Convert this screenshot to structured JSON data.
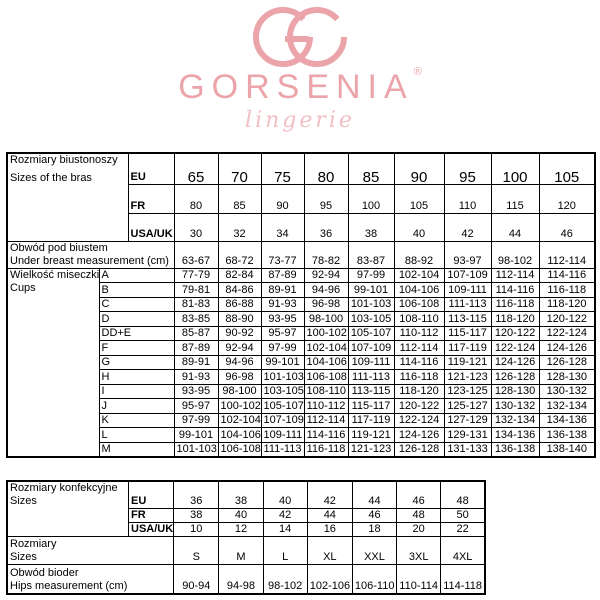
{
  "logo": {
    "brand": "GORSENIA",
    "registered": "®",
    "tagline": "lingerie",
    "color": "#eba4aa"
  },
  "bra_table": {
    "title_pl": "Rozmiary biustonoszy",
    "title_en": "Sizes of the bras",
    "systems": [
      {
        "label": "EU",
        "values": [
          "65",
          "70",
          "75",
          "80",
          "85",
          "90",
          "95",
          "100",
          "105"
        ]
      },
      {
        "label": "FR",
        "values": [
          "80",
          "85",
          "90",
          "95",
          "100",
          "105",
          "110",
          "115",
          "120"
        ]
      },
      {
        "label": "USA/UK",
        "values": [
          "30",
          "32",
          "34",
          "36",
          "38",
          "40",
          "42",
          "44",
          "46"
        ]
      }
    ],
    "underbust": {
      "label_pl": "Obwód pod biustem",
      "label_en": "Under breast measurement (cm)",
      "values": [
        "63-67",
        "68-72",
        "73-77",
        "78-82",
        "83-87",
        "88-92",
        "93-97",
        "98-102",
        "112-114"
      ]
    },
    "cups_label_pl": "Wielkość miseczki",
    "cups_label_en": "Cups",
    "cups": [
      {
        "cup": "A",
        "values": [
          "77-79",
          "82-84",
          "87-89",
          "92-94",
          "97-99",
          "102-104",
          "107-109",
          "112-114",
          "114-116"
        ]
      },
      {
        "cup": "B",
        "values": [
          "79-81",
          "84-86",
          "89-91",
          "94-96",
          "99-101",
          "104-106",
          "109-111",
          "114-116",
          "116-118"
        ]
      },
      {
        "cup": "C",
        "values": [
          "81-83",
          "86-88",
          "91-93",
          "96-98",
          "101-103",
          "106-108",
          "111-113",
          "116-118",
          "118-120"
        ]
      },
      {
        "cup": "D",
        "values": [
          "83-85",
          "88-90",
          "93-95",
          "98-100",
          "103-105",
          "108-110",
          "113-115",
          "118-120",
          "120-122"
        ]
      },
      {
        "cup": "DD+E",
        "values": [
          "85-87",
          "90-92",
          "95-97",
          "100-102",
          "105-107",
          "110-112",
          "115-117",
          "120-122",
          "122-124"
        ]
      },
      {
        "cup": "F",
        "values": [
          "87-89",
          "92-94",
          "97-99",
          "102-104",
          "107-109",
          "112-114",
          "117-119",
          "122-124",
          "124-126"
        ]
      },
      {
        "cup": "G",
        "values": [
          "89-91",
          "94-96",
          "99-101",
          "104-106",
          "109-111",
          "114-116",
          "119-121",
          "124-126",
          "126-128"
        ]
      },
      {
        "cup": "H",
        "values": [
          "91-93",
          "96-98",
          "101-103",
          "106-108",
          "111-113",
          "116-118",
          "121-123",
          "126-128",
          "128-130"
        ]
      },
      {
        "cup": "I",
        "values": [
          "93-95",
          "98-100",
          "103-105",
          "108-110",
          "113-115",
          "118-120",
          "123-125",
          "128-130",
          "130-132"
        ]
      },
      {
        "cup": "J",
        "values": [
          "95-97",
          "100-102",
          "105-107",
          "110-112",
          "115-117",
          "120-122",
          "125-127",
          "130-132",
          "132-134"
        ]
      },
      {
        "cup": "K",
        "values": [
          "97-99",
          "102-104",
          "107-109",
          "112-114",
          "117-119",
          "122-124",
          "127-129",
          "132-134",
          "134-136"
        ]
      },
      {
        "cup": "L",
        "values": [
          "99-101",
          "104-106",
          "109-111",
          "114-116",
          "119-121",
          "124-126",
          "129-131",
          "134-136",
          "136-138"
        ]
      },
      {
        "cup": "M",
        "values": [
          "101-103",
          "106-108",
          "111-113",
          "116-118",
          "121-123",
          "126-128",
          "131-133",
          "136-138",
          "138-140"
        ]
      }
    ]
  },
  "clothing_table": {
    "title_pl": "Rozmiary konfekcyjne",
    "title_en": "Sizes",
    "systems": [
      {
        "label": "EU",
        "values": [
          "36",
          "38",
          "40",
          "42",
          "44",
          "46",
          "48"
        ]
      },
      {
        "label": "FR",
        "values": [
          "38",
          "40",
          "42",
          "44",
          "46",
          "48",
          "50"
        ]
      },
      {
        "label": "USA/UK",
        "values": [
          "10",
          "12",
          "14",
          "16",
          "18",
          "20",
          "22"
        ]
      }
    ],
    "letter": {
      "label_pl": "Rozmiary",
      "label_en": "Sizes",
      "values": [
        "S",
        "M",
        "L",
        "XL",
        "XXL",
        "3XL",
        "4XL"
      ]
    },
    "hips": {
      "label_pl": "Obwód bioder",
      "label_en": "Hips measurement (cm)",
      "values": [
        "90-94",
        "94-98",
        "98-102",
        "102-106",
        "106-110",
        "110-114",
        "114-118"
      ]
    }
  }
}
